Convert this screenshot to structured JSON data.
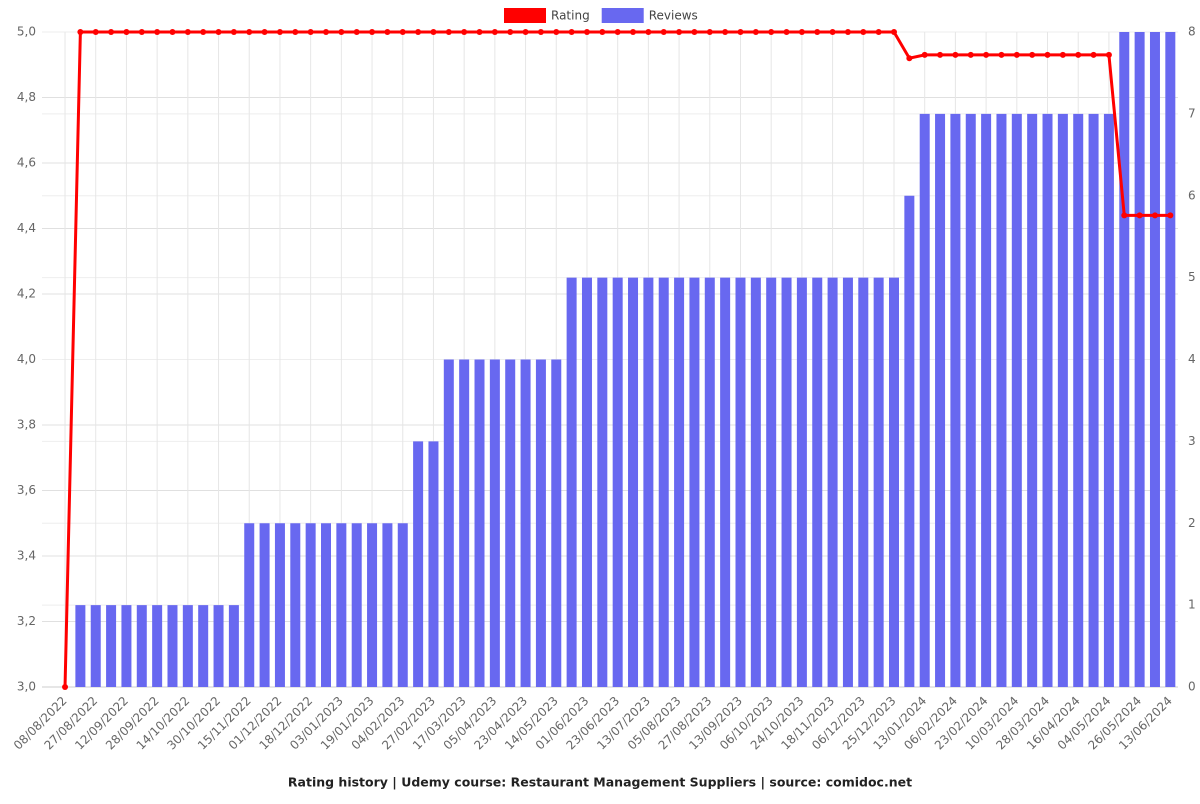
{
  "chart_data": {
    "type": "bar-line",
    "title": "Rating history | Udemy course: Restaurant Management Suppliers | source: comidoc.net",
    "categories": [
      "08/08/2022",
      null,
      "27/08/2022",
      null,
      "12/09/2022",
      null,
      "28/09/2022",
      null,
      "14/10/2022",
      null,
      "30/10/2022",
      null,
      "15/11/2022",
      null,
      "01/12/2022",
      null,
      "18/12/2022",
      null,
      "03/01/2023",
      null,
      "19/01/2023",
      null,
      "04/02/2023",
      null,
      "27/02/2023",
      null,
      "17/03/2023",
      null,
      "05/04/2023",
      null,
      "23/04/2023",
      null,
      "14/05/2023",
      null,
      "01/06/2023",
      null,
      "23/06/2023",
      null,
      "13/07/2023",
      null,
      "05/08/2023",
      null,
      "27/08/2023",
      null,
      "13/09/2023",
      null,
      "06/10/2023",
      null,
      "24/10/2023",
      null,
      "18/11/2023",
      null,
      "06/12/2023",
      null,
      "25/12/2023",
      null,
      "13/01/2024",
      null,
      "06/02/2024",
      null,
      "23/02/2024",
      null,
      "10/03/2024",
      null,
      "28/03/2024",
      null,
      "16/04/2024",
      null,
      "04/05/2024",
      null,
      "26/05/2024",
      null,
      "13/06/2024"
    ],
    "series": [
      {
        "name": "Rating",
        "color": "#ff0000",
        "axis": "y",
        "values": [
          3.0,
          5.0,
          5.0,
          5.0,
          5.0,
          5.0,
          5.0,
          5.0,
          5.0,
          5.0,
          5.0,
          5.0,
          5.0,
          5.0,
          5.0,
          5.0,
          5.0,
          5.0,
          5.0,
          5.0,
          5.0,
          5.0,
          5.0,
          5.0,
          5.0,
          5.0,
          5.0,
          5.0,
          5.0,
          5.0,
          5.0,
          5.0,
          5.0,
          5.0,
          5.0,
          5.0,
          5.0,
          5.0,
          5.0,
          5.0,
          5.0,
          5.0,
          5.0,
          5.0,
          5.0,
          5.0,
          5.0,
          5.0,
          5.0,
          5.0,
          5.0,
          5.0,
          5.0,
          5.0,
          5.0,
          4.92,
          4.93,
          4.93,
          4.93,
          4.93,
          4.93,
          4.93,
          4.93,
          4.93,
          4.93,
          4.93,
          4.93,
          4.93,
          4.93,
          4.44,
          4.44,
          4.44,
          4.44
        ]
      },
      {
        "name": "Reviews",
        "color": "#6868f0",
        "axis": "y2",
        "values": [
          0,
          1,
          1,
          1,
          1,
          1,
          1,
          1,
          1,
          1,
          1,
          1,
          2,
          2,
          2,
          2,
          2,
          2,
          2,
          2,
          2,
          2,
          2,
          3,
          3,
          4,
          4,
          4,
          4,
          4,
          4,
          4,
          4,
          5,
          5,
          5,
          5,
          5,
          5,
          5,
          5,
          5,
          5,
          5,
          5,
          5,
          5,
          5,
          5,
          5,
          5,
          5,
          5,
          5,
          5,
          6,
          7,
          7,
          7,
          7,
          7,
          7,
          7,
          7,
          7,
          7,
          7,
          7,
          7,
          8,
          8,
          8,
          8
        ]
      }
    ],
    "ylim": [
      3.0,
      5.0
    ],
    "yticks": [
      {
        "value": 3.0,
        "label": "3,0"
      },
      {
        "value": 3.2,
        "label": "3,2"
      },
      {
        "value": 3.4,
        "label": "3,4"
      },
      {
        "value": 3.6,
        "label": "3,6"
      },
      {
        "value": 3.8,
        "label": "3,8"
      },
      {
        "value": 4.0,
        "label": "4,0"
      },
      {
        "value": 4.2,
        "label": "4,2"
      },
      {
        "value": 4.4,
        "label": "4,4"
      },
      {
        "value": 4.6,
        "label": "4,6"
      },
      {
        "value": 4.8,
        "label": "4,8"
      },
      {
        "value": 5.0,
        "label": "5,0"
      }
    ],
    "y2lim": [
      0,
      8
    ],
    "y2ticks": [
      0,
      1,
      2,
      3,
      4,
      5,
      6,
      7,
      8
    ],
    "grid": true
  }
}
